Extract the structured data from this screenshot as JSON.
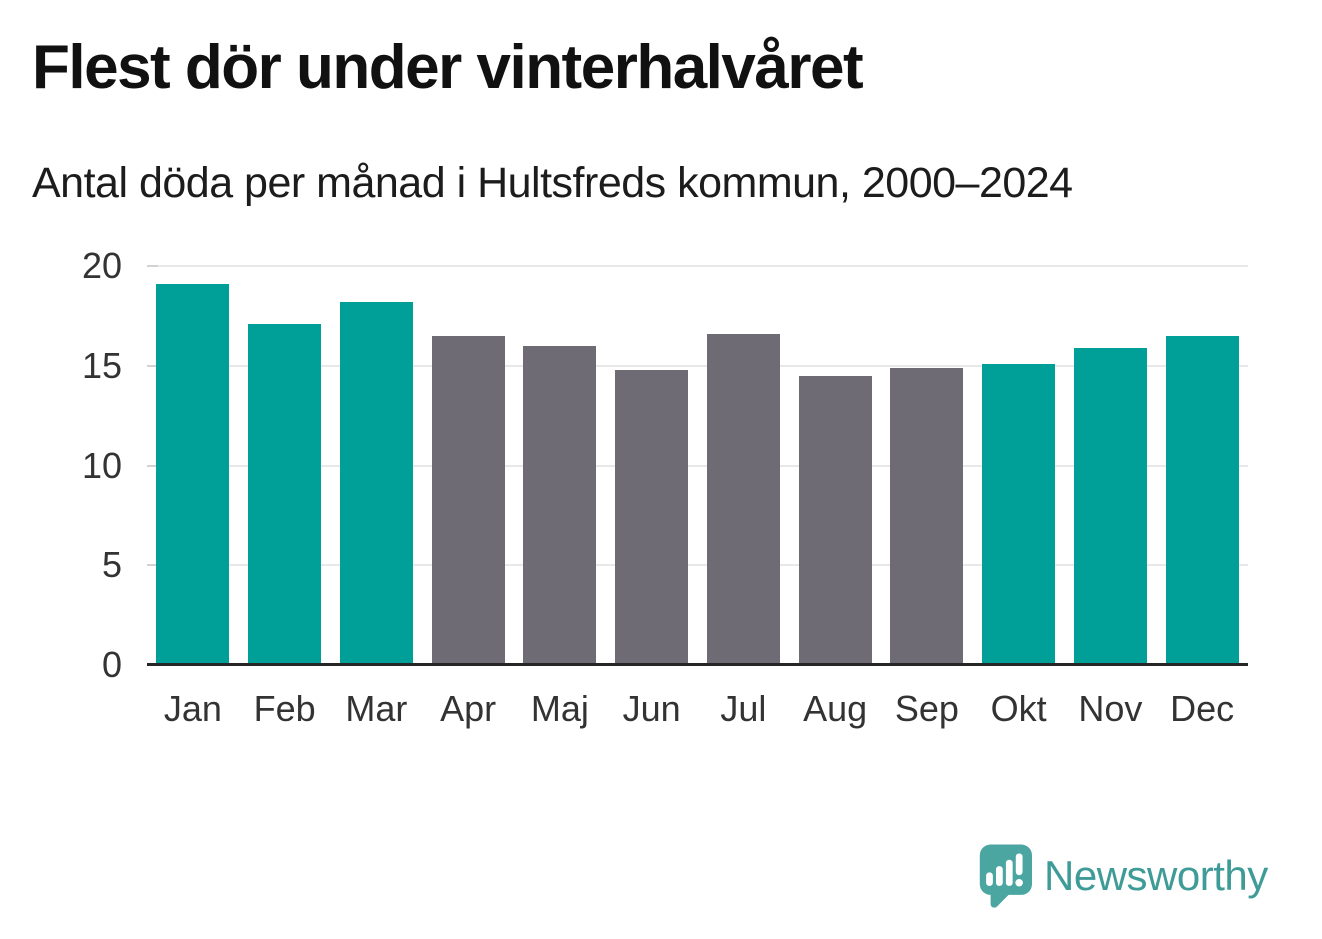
{
  "header": {
    "title": "Flest dör under vinterhalvåret",
    "subtitle": "Antal döda per månad i Hultsfreds kommun, 2000–2024"
  },
  "chart_data": {
    "type": "bar",
    "title": "Flest dör under vinterhalvåret",
    "subtitle": "Antal döda per månad i Hultsfreds kommun, 2000–2024",
    "categories": [
      "Jan",
      "Feb",
      "Mar",
      "Apr",
      "Maj",
      "Jun",
      "Jul",
      "Aug",
      "Sep",
      "Okt",
      "Nov",
      "Dec"
    ],
    "values": [
      19.1,
      17.1,
      18.2,
      16.5,
      16.0,
      14.8,
      16.6,
      14.5,
      14.9,
      15.1,
      15.9,
      16.5
    ],
    "bar_color_keys": [
      "winter",
      "winter",
      "winter",
      "summer",
      "summer",
      "summer",
      "summer",
      "summer",
      "summer",
      "winter",
      "winter",
      "winter"
    ],
    "colors": {
      "winter": "#00a099",
      "summer": "#6e6b74"
    },
    "xlabel": "",
    "ylabel": "",
    "ylim": [
      0,
      20
    ],
    "yticks": [
      0,
      5,
      10,
      15,
      20
    ],
    "grid": true,
    "legend": false,
    "axis_color": "#262626",
    "gridline_color": "#e8e8e8",
    "tick_label_color": "#333333"
  },
  "branding": {
    "logo_text": "Newsworthy",
    "wordmark_color": "#3f9b98",
    "icon_color": "#4ba6a1",
    "icon_bar_color": "#ffffff"
  }
}
